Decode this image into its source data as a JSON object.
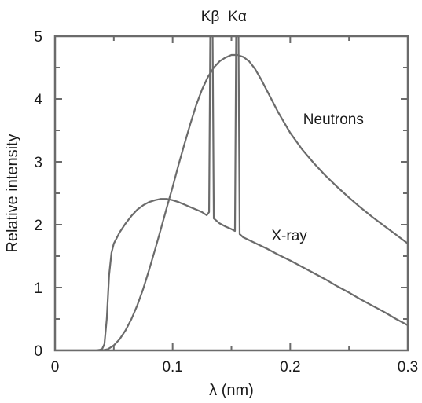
{
  "chart_data": {
    "type": "line",
    "title": "",
    "xlabel": "λ (nm)",
    "ylabel": "Relative intensity",
    "xlim": [
      0,
      0.3
    ],
    "ylim": [
      0,
      5
    ],
    "grid": false,
    "x_ticks": [
      0,
      0.05,
      0.1,
      0.15,
      0.2,
      0.25,
      0.3
    ],
    "x_tick_labels": [
      "0",
      "",
      "0.1",
      "",
      "0.2",
      "",
      "0.3"
    ],
    "y_ticks": [
      0,
      0.5,
      1,
      1.5,
      2,
      2.5,
      3,
      3.5,
      4,
      4.5,
      5
    ],
    "y_tick_labels": [
      "0",
      "",
      "1",
      "",
      "2",
      "",
      "3",
      "",
      "4",
      "",
      "5"
    ],
    "series": [
      {
        "name": "Neutrons",
        "color": "#6b6b6b",
        "label_at": [
          0.211,
          3.6
        ],
        "points": [
          [
            0.0,
            0.0
          ],
          [
            0.03,
            0.0
          ],
          [
            0.04,
            0.0
          ],
          [
            0.045,
            0.02
          ],
          [
            0.05,
            0.08
          ],
          [
            0.055,
            0.18
          ],
          [
            0.06,
            0.32
          ],
          [
            0.065,
            0.5
          ],
          [
            0.07,
            0.72
          ],
          [
            0.075,
            0.98
          ],
          [
            0.08,
            1.28
          ],
          [
            0.085,
            1.6
          ],
          [
            0.09,
            1.93
          ],
          [
            0.095,
            2.27
          ],
          [
            0.1,
            2.6
          ],
          [
            0.105,
            2.95
          ],
          [
            0.11,
            3.28
          ],
          [
            0.115,
            3.6
          ],
          [
            0.12,
            3.9
          ],
          [
            0.125,
            4.15
          ],
          [
            0.13,
            4.35
          ],
          [
            0.135,
            4.5
          ],
          [
            0.14,
            4.6
          ],
          [
            0.145,
            4.66
          ],
          [
            0.15,
            4.7
          ],
          [
            0.155,
            4.7
          ],
          [
            0.16,
            4.67
          ],
          [
            0.165,
            4.6
          ],
          [
            0.17,
            4.48
          ],
          [
            0.175,
            4.32
          ],
          [
            0.18,
            4.14
          ],
          [
            0.185,
            3.96
          ],
          [
            0.19,
            3.78
          ],
          [
            0.195,
            3.62
          ],
          [
            0.2,
            3.46
          ],
          [
            0.21,
            3.2
          ],
          [
            0.22,
            2.98
          ],
          [
            0.23,
            2.78
          ],
          [
            0.24,
            2.6
          ],
          [
            0.25,
            2.43
          ],
          [
            0.26,
            2.27
          ],
          [
            0.27,
            2.12
          ],
          [
            0.28,
            1.98
          ],
          [
            0.29,
            1.84
          ],
          [
            0.3,
            1.7
          ]
        ]
      },
      {
        "name": "X-ray",
        "color": "#6b6b6b",
        "label_at": [
          0.184,
          1.75
        ],
        "points": [
          [
            0.0,
            0.0
          ],
          [
            0.035,
            0.0
          ],
          [
            0.038,
            0.01
          ],
          [
            0.04,
            0.02
          ],
          [
            0.042,
            0.1
          ],
          [
            0.044,
            0.5
          ],
          [
            0.046,
            1.2
          ],
          [
            0.048,
            1.55
          ],
          [
            0.05,
            1.7
          ],
          [
            0.055,
            1.88
          ],
          [
            0.06,
            2.02
          ],
          [
            0.065,
            2.14
          ],
          [
            0.07,
            2.24
          ],
          [
            0.075,
            2.31
          ],
          [
            0.08,
            2.36
          ],
          [
            0.085,
            2.39
          ],
          [
            0.09,
            2.41
          ],
          [
            0.095,
            2.41
          ],
          [
            0.1,
            2.39
          ],
          [
            0.105,
            2.36
          ],
          [
            0.11,
            2.32
          ],
          [
            0.115,
            2.28
          ],
          [
            0.12,
            2.24
          ],
          [
            0.125,
            2.2
          ],
          [
            0.129,
            2.15
          ],
          [
            0.131,
            2.2
          ],
          [
            0.132,
            5.0
          ],
          [
            0.134,
            5.0
          ],
          [
            0.135,
            2.1
          ],
          [
            0.14,
            2.02
          ],
          [
            0.145,
            1.97
          ],
          [
            0.15,
            1.93
          ],
          [
            0.153,
            1.9
          ],
          [
            0.154,
            5.0
          ],
          [
            0.156,
            5.0
          ],
          [
            0.157,
            1.85
          ],
          [
            0.16,
            1.8
          ],
          [
            0.17,
            1.71
          ],
          [
            0.18,
            1.62
          ],
          [
            0.19,
            1.52
          ],
          [
            0.2,
            1.43
          ],
          [
            0.21,
            1.33
          ],
          [
            0.22,
            1.23
          ],
          [
            0.23,
            1.13
          ],
          [
            0.24,
            1.02
          ],
          [
            0.25,
            0.92
          ],
          [
            0.26,
            0.81
          ],
          [
            0.27,
            0.71
          ],
          [
            0.28,
            0.61
          ],
          [
            0.29,
            0.5
          ],
          [
            0.3,
            0.4
          ]
        ]
      }
    ],
    "annotations": [
      {
        "text": "Kβ",
        "x": 0.132
      },
      {
        "text": "Kα",
        "x": 0.155
      }
    ]
  }
}
